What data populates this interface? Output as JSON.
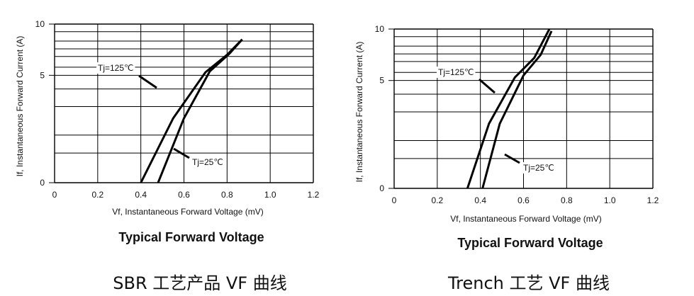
{
  "chart_data": [
    {
      "type": "line",
      "title": "Typical Forward Voltage",
      "xlabel": "Vf, Instantaneous Forward  Voltage (mV)",
      "ylabel": "If, Instantaneous  Forward Current (A)",
      "caption": "SBR 工艺产品 VF 曲线",
      "xlim": [
        0,
        1.2
      ],
      "x_ticks": [
        "0",
        "0.2",
        "0.4",
        "0.6",
        "0.8",
        "1.0",
        "1.2"
      ],
      "y_ticks": [
        "10",
        "5",
        "0"
      ],
      "grid": true,
      "series": [
        {
          "name": "Tj=125℃",
          "points": [
            [
              0.4,
              0
            ],
            [
              0.55,
              3.0
            ],
            [
              0.7,
              5.3
            ],
            [
              0.8,
              7.0
            ],
            [
              0.87,
              8.5
            ]
          ]
        },
        {
          "name": "Tj=25℃",
          "points": [
            [
              0.48,
              0
            ],
            [
              0.6,
              3.0
            ],
            [
              0.72,
              5.4
            ],
            [
              0.81,
              7.1
            ],
            [
              0.87,
              8.5
            ]
          ]
        }
      ],
      "annotations": [
        {
          "text": "Tj=125℃",
          "series": 0
        },
        {
          "text": "Tj=25℃",
          "series": 1
        }
      ]
    },
    {
      "type": "line",
      "title": "Typical Forward Voltage",
      "xlabel": "Vf, Instantaneous Forward  Voltage (mV)",
      "ylabel": "If, Instantaneous  Forward Current (A)",
      "caption": "Trench 工艺 VF 曲线",
      "xlim": [
        0,
        1.2
      ],
      "x_ticks": [
        "0",
        "0.2",
        "0.4",
        "0.6",
        "0.8",
        "1.0",
        "1.2"
      ],
      "y_ticks": [
        "10",
        "5",
        "0"
      ],
      "grid": true,
      "series": [
        {
          "name": "Tj=125℃",
          "points": [
            [
              0.34,
              0
            ],
            [
              0.44,
              3.0
            ],
            [
              0.56,
              5.3
            ],
            [
              0.65,
              7.2
            ],
            [
              0.72,
              10.0
            ]
          ]
        },
        {
          "name": "Tj=25℃",
          "points": [
            [
              0.41,
              0
            ],
            [
              0.49,
              3.0
            ],
            [
              0.6,
              5.5
            ],
            [
              0.68,
              7.5
            ],
            [
              0.73,
              9.8
            ]
          ]
        }
      ],
      "annotations": [
        {
          "text": "Tj=125℃",
          "series": 0
        },
        {
          "text": "Tj=25℃",
          "series": 1
        }
      ]
    }
  ]
}
